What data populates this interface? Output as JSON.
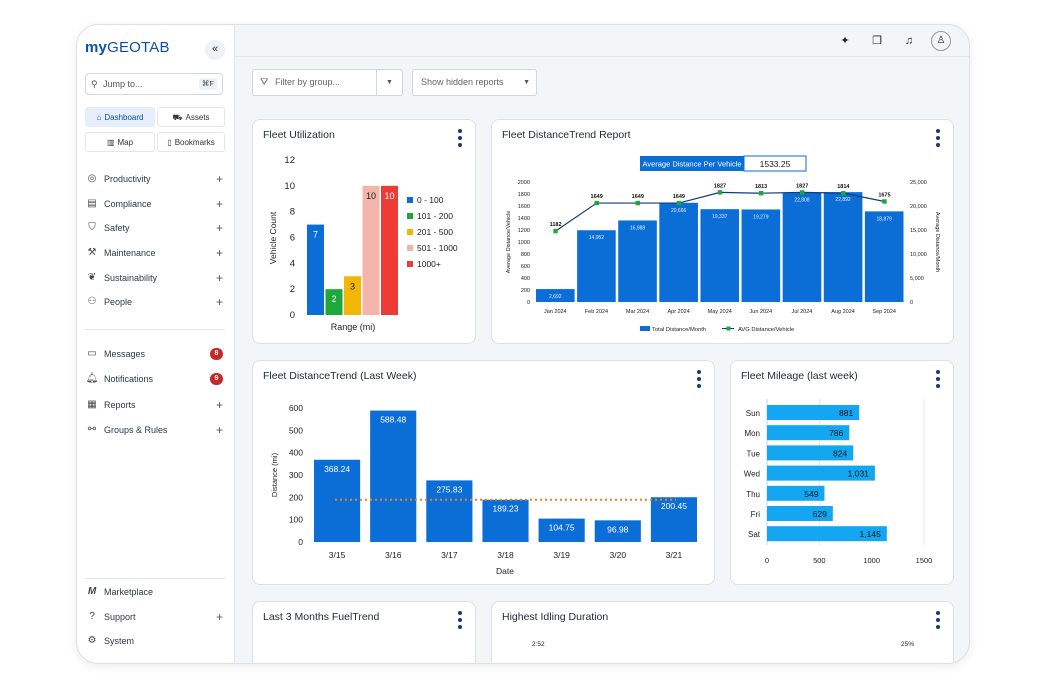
{
  "brand": {
    "logo_my": "my",
    "logo_name": "GEOTAB"
  },
  "sidebar": {
    "collapse_icon": "double-chevron-left-icon",
    "search": {
      "placeholder": "Jump to...",
      "shortcut": "⌘F"
    },
    "quick": [
      {
        "label": "Dashboard",
        "icon": "home-icon",
        "active": true
      },
      {
        "label": "Assets",
        "icon": "truck-icon",
        "active": false
      },
      {
        "label": "Map",
        "icon": "map-icon",
        "active": false
      },
      {
        "label": "Bookmarks",
        "icon": "bookmark-icon",
        "active": false
      }
    ],
    "sections": [
      {
        "label": "Productivity",
        "icon": "globe-icon",
        "trail": "+"
      },
      {
        "label": "Compliance",
        "icon": "clipboard-icon",
        "trail": "+"
      },
      {
        "label": "Safety",
        "icon": "shield-icon",
        "trail": "+"
      },
      {
        "label": "Maintenance",
        "icon": "wrench-icon",
        "trail": "+"
      },
      {
        "label": "Sustainability",
        "icon": "leaf-icon",
        "trail": "+"
      },
      {
        "label": "People",
        "icon": "people-icon",
        "trail": "+"
      }
    ],
    "comms": [
      {
        "label": "Messages",
        "icon": "message-icon",
        "badge": "8"
      },
      {
        "label": "Notifications",
        "icon": "bell-icon",
        "badge": "9"
      },
      {
        "label": "Reports",
        "icon": "report-icon",
        "trail": "+"
      },
      {
        "label": "Groups & Rules",
        "icon": "groups-icon",
        "trail": "+"
      }
    ],
    "footer": [
      {
        "label": "Marketplace",
        "icon": "marketplace-icon",
        "trail": ""
      },
      {
        "label": "Support",
        "icon": "help-icon",
        "trail": "+"
      },
      {
        "label": "System",
        "icon": "gear-icon",
        "trail": ""
      }
    ]
  },
  "topbar": {
    "icons": [
      "sparkle-icon",
      "windows-icon",
      "bell-icon",
      "user-icon"
    ]
  },
  "toolbar": {
    "filter_placeholder": "Filter by group...",
    "hidden_reports": "Show hidden reports"
  },
  "colors": {
    "primary": "#0b6ed6",
    "brand": "#0b4fa8",
    "green": "#1ea83a",
    "orange": "#f07f1a",
    "cyan": "#12a7f0"
  },
  "cards": {
    "fleet_utilization": {
      "title": "Fleet Utilization"
    },
    "fleet_distance_report": {
      "title": "Fleet DistanceTrend Report"
    },
    "fleet_distance_week": {
      "title": "Fleet DistanceTrend (Last Week)"
    },
    "fleet_mileage": {
      "title": "Fleet Mileage (last week)"
    },
    "fuel_trend": {
      "title": "Last 3 Months FuelTrend"
    },
    "idling": {
      "title": "Highest Idling Duration"
    }
  },
  "chart_data": [
    {
      "id": "fleet_utilization",
      "type": "bar",
      "title": "Fleet Utilization",
      "xlabel": "Range (mi)",
      "ylabel": "Vehicle Count",
      "ylim": [
        0,
        12
      ],
      "yticks": [
        0,
        2,
        4,
        6,
        8,
        10,
        12
      ],
      "series": [
        {
          "name": "0 - 100",
          "value": 7,
          "color": "#0b6ed6"
        },
        {
          "name": "101 - 200",
          "value": 2,
          "color": "#1ea83a"
        },
        {
          "name": "201 - 500",
          "value": 3,
          "color": "#f2b705"
        },
        {
          "name": "501 - 1000",
          "value": 10,
          "color": "#f3b4ab"
        },
        {
          "name": "1000+",
          "value": 10,
          "color": "#ef3b36"
        }
      ],
      "legend": "right",
      "grid": false
    },
    {
      "id": "fleet_distance_report",
      "type": "bar",
      "title": "Fleet DistanceTrend Report",
      "kpi": {
        "label": "Average Distance Per Vehicle",
        "value": "1533.25"
      },
      "categories": [
        "Jan 2024",
        "Feb 2024",
        "Mar 2024",
        "Apr 2024",
        "May 2024",
        "Jun 2024",
        "Jul 2024",
        "Aug 2024",
        "Sep 2024"
      ],
      "series": [
        {
          "name": "Total Distance/Month",
          "type": "bar",
          "axis": "right",
          "values": [
            2692,
            14952,
            16988,
            20666,
            19337,
            19279,
            22808,
            22892,
            18879
          ],
          "labels": [
            "2,692",
            "14,952",
            "16,988",
            "20,666",
            "19,337",
            "19,279",
            "22,808",
            "22,892",
            "18,879"
          ]
        },
        {
          "name": "AVG Distance/Vehicle",
          "type": "line",
          "axis": "left",
          "values": [
            1182,
            1649,
            1649,
            1649,
            1827,
            1813,
            1827,
            1814,
            1675
          ]
        }
      ],
      "ylabel": "Average Distance/Vehicle",
      "ylabel_right": "Average Distance/Month",
      "ylim": [
        0,
        2000
      ],
      "yticks": [
        0,
        200,
        400,
        600,
        800,
        1000,
        1200,
        1400,
        1600,
        1800,
        2000
      ],
      "ylim_right": [
        0,
        25000
      ],
      "yticks_right": [
        "0",
        "5,000",
        "10,000",
        "15,000",
        "20,000",
        "25,000"
      ],
      "legend": "bottom"
    },
    {
      "id": "fleet_distance_week",
      "type": "bar",
      "title": "Fleet DistanceTrend (Last Week)",
      "categories": [
        "3/15",
        "3/16",
        "3/17",
        "3/18",
        "3/19",
        "3/20",
        "3/21"
      ],
      "values": [
        368.24,
        588.48,
        275.83,
        189.23,
        104.75,
        96.98,
        200.45
      ],
      "reference_line": 189,
      "xlabel": "Date",
      "ylabel": "Distance (mi)",
      "ylim": [
        0,
        600
      ],
      "yticks": [
        0,
        100,
        200,
        300,
        400,
        500,
        600
      ]
    },
    {
      "id": "fleet_mileage",
      "type": "bar",
      "orientation": "horizontal",
      "title": "Fleet Mileage (last week)",
      "categories": [
        "Sun",
        "Mon",
        "Tue",
        "Wed",
        "Thu",
        "Fri",
        "Sat"
      ],
      "values": [
        881,
        786,
        824,
        1031,
        549,
        629,
        1145
      ],
      "labels": [
        "881",
        "786",
        "824",
        "1,031",
        "549",
        "629",
        "1,145"
      ],
      "xlim": [
        0,
        1500
      ],
      "xticks": [
        "0",
        "500",
        "1000",
        "1500"
      ]
    },
    {
      "id": "fuel_trend",
      "type": "bar",
      "title": "Last 3 Months FuelTrend",
      "yticks": [
        1600,
        1400
      ]
    },
    {
      "id": "idling",
      "type": "bar",
      "title": "Highest Idling Duration",
      "ytick_left": "2:52",
      "ytick_right": "25%"
    }
  ]
}
